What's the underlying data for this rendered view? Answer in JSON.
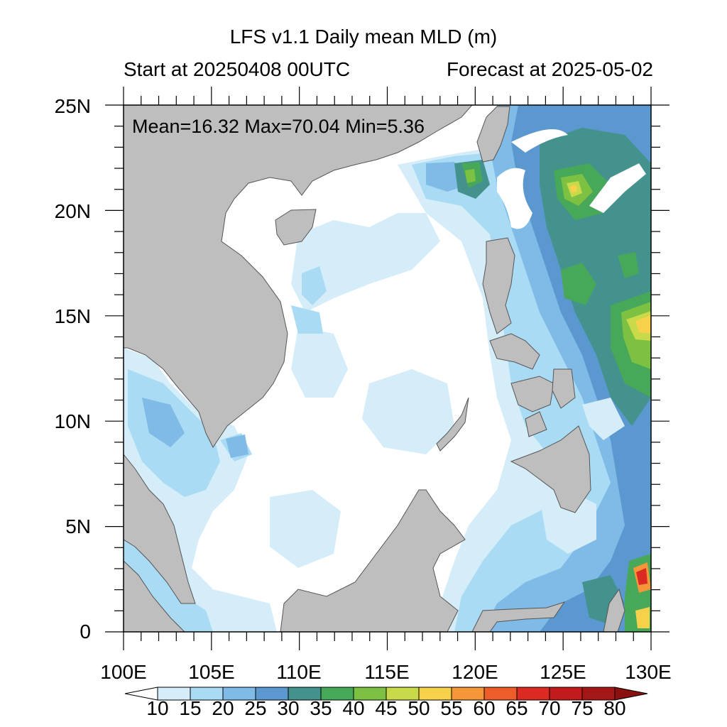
{
  "title": "LFS v1.1 Daily mean MLD (m)",
  "subtitle_left": "Start at 20250408 00UTC",
  "subtitle_right": "Forecast at 2025-05-02",
  "stats": {
    "text": "Mean=16.32  Max=70.04  Min=5.36",
    "mean": 16.32,
    "max": 70.04,
    "min": 5.36
  },
  "lon_range": [
    100,
    130
  ],
  "lat_range": [
    0,
    25
  ],
  "lon_ticks": [
    "100E",
    "105E",
    "110E",
    "115E",
    "120E",
    "125E",
    "130E"
  ],
  "lat_ticks": [
    "0",
    "5N",
    "10N",
    "15N",
    "20N",
    "25N"
  ],
  "colorbar": {
    "levels": [
      "10",
      "15",
      "20",
      "25",
      "30",
      "35",
      "40",
      "45",
      "50",
      "55",
      "60",
      "65",
      "70",
      "75",
      "80"
    ],
    "colors": [
      "#ffffff",
      "#d4edf9",
      "#a9dbf4",
      "#7fbbe6",
      "#5b98cf",
      "#43928d",
      "#48a85a",
      "#7dc142",
      "#c8d94a",
      "#f8d14a",
      "#f59738",
      "#ec5d2a",
      "#db2a22",
      "#c21b1b",
      "#a31717",
      "#8b1010"
    ]
  },
  "colors": {
    "land": "#bebebe",
    "coast": "#666666"
  }
}
